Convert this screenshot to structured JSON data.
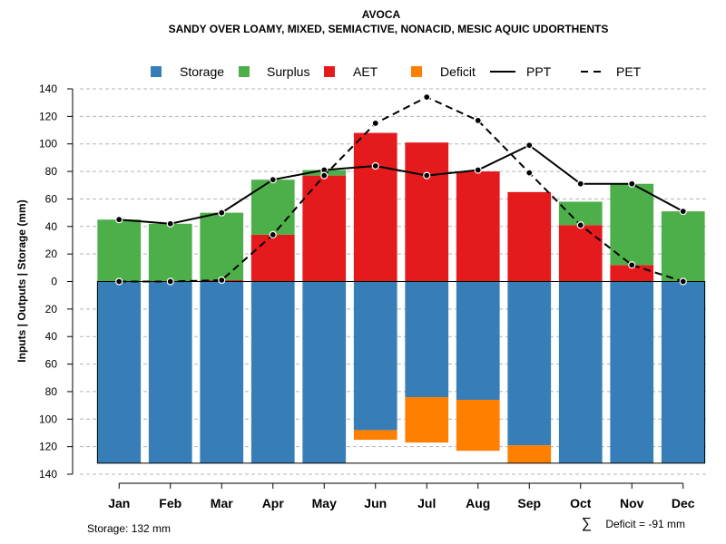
{
  "chart_data": {
    "type": "bar",
    "title": "AVOCA",
    "subtitle": "SANDY OVER LOAMY, MIXED, SEMIACTIVE, NONACID, MESIC AQUIC UDORTHENTS",
    "ylabel": "Inputs | Outputs | Storage    (mm)",
    "ylim": [
      -140,
      140
    ],
    "yticks": [
      140,
      120,
      100,
      80,
      60,
      40,
      20,
      0,
      -20,
      -40,
      -60,
      -80,
      -100,
      -120,
      -140
    ],
    "ytick_labels": [
      "140",
      "120",
      "100",
      "80",
      "60",
      "40",
      "20",
      "0",
      "20",
      "40",
      "60",
      "80",
      "100",
      "120",
      "140"
    ],
    "categories": [
      "Jan",
      "Feb",
      "Mar",
      "Apr",
      "May",
      "Jun",
      "Jul",
      "Aug",
      "Sep",
      "Oct",
      "Nov",
      "Dec"
    ],
    "legend": [
      {
        "name": "Storage",
        "kind": "box",
        "color": "#377EB8"
      },
      {
        "name": "Surplus",
        "kind": "box",
        "color": "#4DAF4A"
      },
      {
        "name": "AET",
        "kind": "box",
        "color": "#E41A1C"
      },
      {
        "name": "Deficit",
        "kind": "box",
        "color": "#FF7F00"
      },
      {
        "name": "PPT",
        "kind": "solid",
        "color": "#000000"
      },
      {
        "name": "PET",
        "kind": "dashed",
        "color": "#000000"
      }
    ],
    "series": [
      {
        "name": "AET",
        "color": "#E41A1C",
        "values": [
          0,
          0,
          1,
          34,
          77,
          108,
          101,
          80,
          65,
          41,
          12,
          0
        ]
      },
      {
        "name": "Surplus",
        "color": "#4DAF4A",
        "values": [
          45,
          42,
          49,
          40,
          4,
          0,
          0,
          0,
          0,
          17,
          59,
          51
        ]
      },
      {
        "name": "Storage",
        "color": "#377EB8",
        "values": [
          132,
          132,
          132,
          132,
          132,
          108,
          84,
          86,
          119,
          132,
          132,
          132
        ]
      },
      {
        "name": "Deficit",
        "color": "#FF7F00",
        "values": [
          0,
          0,
          0,
          0,
          0,
          7,
          33,
          37,
          13,
          0,
          0,
          0
        ]
      },
      {
        "name": "PPT",
        "color": "#000000",
        "values": [
          45,
          42,
          50,
          74,
          81,
          84,
          77,
          81,
          99,
          71,
          71,
          51
        ]
      },
      {
        "name": "PET",
        "color": "#000000",
        "values": [
          0,
          0,
          1,
          34,
          77,
          115,
          134,
          117,
          79,
          41,
          12,
          0
        ]
      }
    ],
    "storage_capacity": 132,
    "annotations": {
      "storage": "Storage: 132 mm",
      "deficit_symbol": "∑",
      "deficit": "Deficit = -91 mm"
    }
  }
}
